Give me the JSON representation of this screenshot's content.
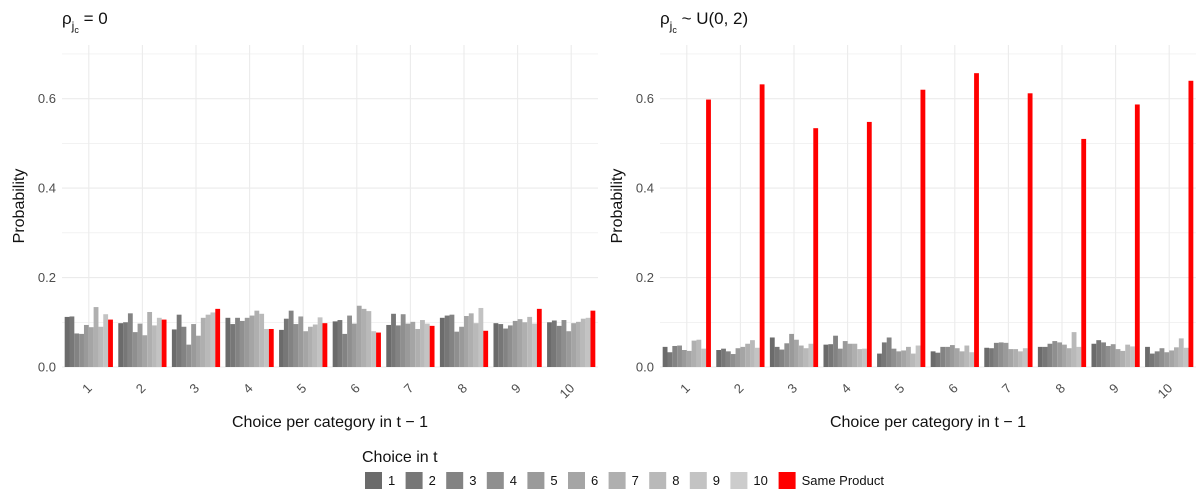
{
  "chart_data": [
    {
      "type": "bar",
      "panel_title": "ρ_{j_c} = 0",
      "xlabel": "Choice per category in t − 1",
      "ylabel": "Probability",
      "ylim": [
        0,
        0.72
      ],
      "yticks": [
        0.0,
        0.2,
        0.4,
        0.6
      ],
      "ytick_labels": [
        "0.0",
        "0.2",
        "0.4",
        "0.6"
      ],
      "grid": true,
      "categories": [
        "1",
        "2",
        "3",
        "4",
        "5",
        "6",
        "7",
        "8",
        "9",
        "10"
      ],
      "groups": [
        {
          "category": "1",
          "others": [
            0.112,
            0.113,
            0.075,
            0.074,
            0.094,
            0.089,
            0.134,
            0.09,
            0.118
          ],
          "same": 0.106
        },
        {
          "category": "2",
          "others": [
            0.098,
            0.1,
            0.12,
            0.078,
            0.097,
            0.071,
            0.123,
            0.093,
            0.11
          ],
          "same": 0.106
        },
        {
          "category": "3",
          "others": [
            0.084,
            0.117,
            0.09,
            0.05,
            0.096,
            0.07,
            0.11,
            0.117,
            0.122
          ],
          "same": 0.13
        },
        {
          "category": "4",
          "others": [
            0.11,
            0.096,
            0.11,
            0.103,
            0.11,
            0.115,
            0.126,
            0.119,
            0.085
          ],
          "same": 0.085
        },
        {
          "category": "5",
          "others": [
            0.083,
            0.108,
            0.126,
            0.096,
            0.113,
            0.08,
            0.09,
            0.095,
            0.111
          ],
          "same": 0.098
        },
        {
          "category": "6",
          "others": [
            0.102,
            0.105,
            0.074,
            0.115,
            0.097,
            0.137,
            0.13,
            0.125,
            0.08
          ],
          "same": 0.077
        },
        {
          "category": "7",
          "others": [
            0.094,
            0.119,
            0.093,
            0.118,
            0.097,
            0.101,
            0.085,
            0.105,
            0.097
          ],
          "same": 0.092
        },
        {
          "category": "8",
          "others": [
            0.11,
            0.115,
            0.117,
            0.079,
            0.09,
            0.114,
            0.12,
            0.098,
            0.132
          ],
          "same": 0.081
        },
        {
          "category": "9",
          "others": [
            0.098,
            0.096,
            0.086,
            0.093,
            0.103,
            0.107,
            0.1,
            0.112,
            0.097
          ],
          "same": 0.13
        },
        {
          "category": "10",
          "others": [
            0.1,
            0.104,
            0.092,
            0.105,
            0.08,
            0.098,
            0.101,
            0.108,
            0.11
          ],
          "same": 0.126
        }
      ]
    },
    {
      "type": "bar",
      "panel_title": "ρ_{j_c} ~ U(0, 2)",
      "xlabel": "Choice per category in t − 1",
      "ylabel": "Probability",
      "ylim": [
        0,
        0.72
      ],
      "yticks": [
        0.0,
        0.2,
        0.4,
        0.6
      ],
      "ytick_labels": [
        "0.0",
        "0.2",
        "0.4",
        "0.6"
      ],
      "grid": true,
      "categories": [
        "1",
        "2",
        "3",
        "4",
        "5",
        "6",
        "7",
        "8",
        "9",
        "10"
      ],
      "groups": [
        {
          "category": "1",
          "others": [
            0.045,
            0.033,
            0.047,
            0.048,
            0.038,
            0.036,
            0.059,
            0.061,
            0.041
          ],
          "same": 0.598
        },
        {
          "category": "2",
          "others": [
            0.038,
            0.041,
            0.035,
            0.029,
            0.042,
            0.045,
            0.052,
            0.06,
            0.043
          ],
          "same": 0.632
        },
        {
          "category": "3",
          "others": [
            0.066,
            0.045,
            0.039,
            0.053,
            0.074,
            0.061,
            0.048,
            0.042,
            0.052
          ],
          "same": 0.534
        },
        {
          "category": "4",
          "others": [
            0.05,
            0.051,
            0.07,
            0.041,
            0.058,
            0.052,
            0.052,
            0.04,
            0.041
          ],
          "same": 0.548
        },
        {
          "category": "5",
          "others": [
            0.03,
            0.055,
            0.066,
            0.041,
            0.035,
            0.037,
            0.045,
            0.03,
            0.048
          ],
          "same": 0.62
        },
        {
          "category": "6",
          "others": [
            0.035,
            0.032,
            0.045,
            0.045,
            0.049,
            0.042,
            0.035,
            0.048,
            0.033
          ],
          "same": 0.657
        },
        {
          "category": "7",
          "others": [
            0.043,
            0.042,
            0.054,
            0.055,
            0.054,
            0.04,
            0.04,
            0.035,
            0.042
          ],
          "same": 0.612
        },
        {
          "category": "8",
          "others": [
            0.045,
            0.045,
            0.052,
            0.058,
            0.055,
            0.05,
            0.042,
            0.078,
            0.045
          ],
          "same": 0.51
        },
        {
          "category": "9",
          "others": [
            0.052,
            0.06,
            0.055,
            0.047,
            0.051,
            0.04,
            0.036,
            0.05,
            0.046
          ],
          "same": 0.587
        },
        {
          "category": "10",
          "others": [
            0.045,
            0.03,
            0.035,
            0.042,
            0.033,
            0.037,
            0.044,
            0.064,
            0.043
          ],
          "same": 0.64
        }
      ]
    }
  ],
  "legend": {
    "title": "Choice in t",
    "items": [
      {
        "label": "1",
        "color": "#6b6b6b"
      },
      {
        "label": "2",
        "color": "#777777"
      },
      {
        "label": "3",
        "color": "#838383"
      },
      {
        "label": "4",
        "color": "#8f8f8f"
      },
      {
        "label": "5",
        "color": "#9a9a9a"
      },
      {
        "label": "6",
        "color": "#a5a5a5"
      },
      {
        "label": "7",
        "color": "#afafaf"
      },
      {
        "label": "8",
        "color": "#b9b9b9"
      },
      {
        "label": "9",
        "color": "#c3c3c3"
      },
      {
        "label": "10",
        "color": "#cccccc"
      },
      {
        "label": "Same Product",
        "color": "#ff0000"
      }
    ]
  },
  "colors": {
    "grid": "#ebebeb",
    "axis_text": "#4d4d4d",
    "same_product": "#ff0000"
  }
}
